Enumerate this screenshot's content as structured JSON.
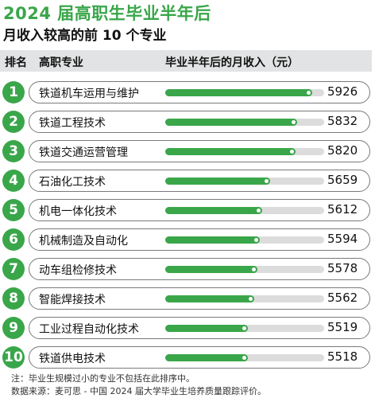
{
  "title": "2024 届高职生毕业半年后",
  "subtitle": "月收入较高的前 10 个专业",
  "header": {
    "rank": "排名",
    "major": "高职专业",
    "income": "毕业半年后的月收入（元）"
  },
  "colors": {
    "accent": "#3aa64a",
    "header_bg": "#e2e3e4",
    "track": "#dcdcdc"
  },
  "chart_data": {
    "type": "bar",
    "orientation": "horizontal",
    "title": "2024 届高职生毕业半年后",
    "subtitle": "月收入较高的前 10 个专业",
    "ylabel": "毕业半年后的月收入（元）",
    "ranks": [
      "1",
      "2",
      "3",
      "4",
      "5",
      "6",
      "7",
      "8",
      "9",
      "10"
    ],
    "categories": [
      "铁道机车运用与维护",
      "铁道工程技术",
      "铁道交通运营管理",
      "石油化工技术",
      "机电一体化技术",
      "机械制造及自动化",
      "动车组检修技术",
      "智能焊接技术",
      "工业过程自动化技术",
      "铁道供电技术"
    ],
    "values": [
      5926,
      5832,
      5820,
      5659,
      5612,
      5594,
      5578,
      5562,
      5519,
      5518
    ],
    "xlim": [
      5000,
      6000
    ]
  },
  "notes": {
    "note1": "注：毕业生规模过小的专业不包括在此排序中。",
    "note2": "数据来源：麦可思 - 中国 2024 届大学毕业生培养质量跟踪评价。"
  }
}
